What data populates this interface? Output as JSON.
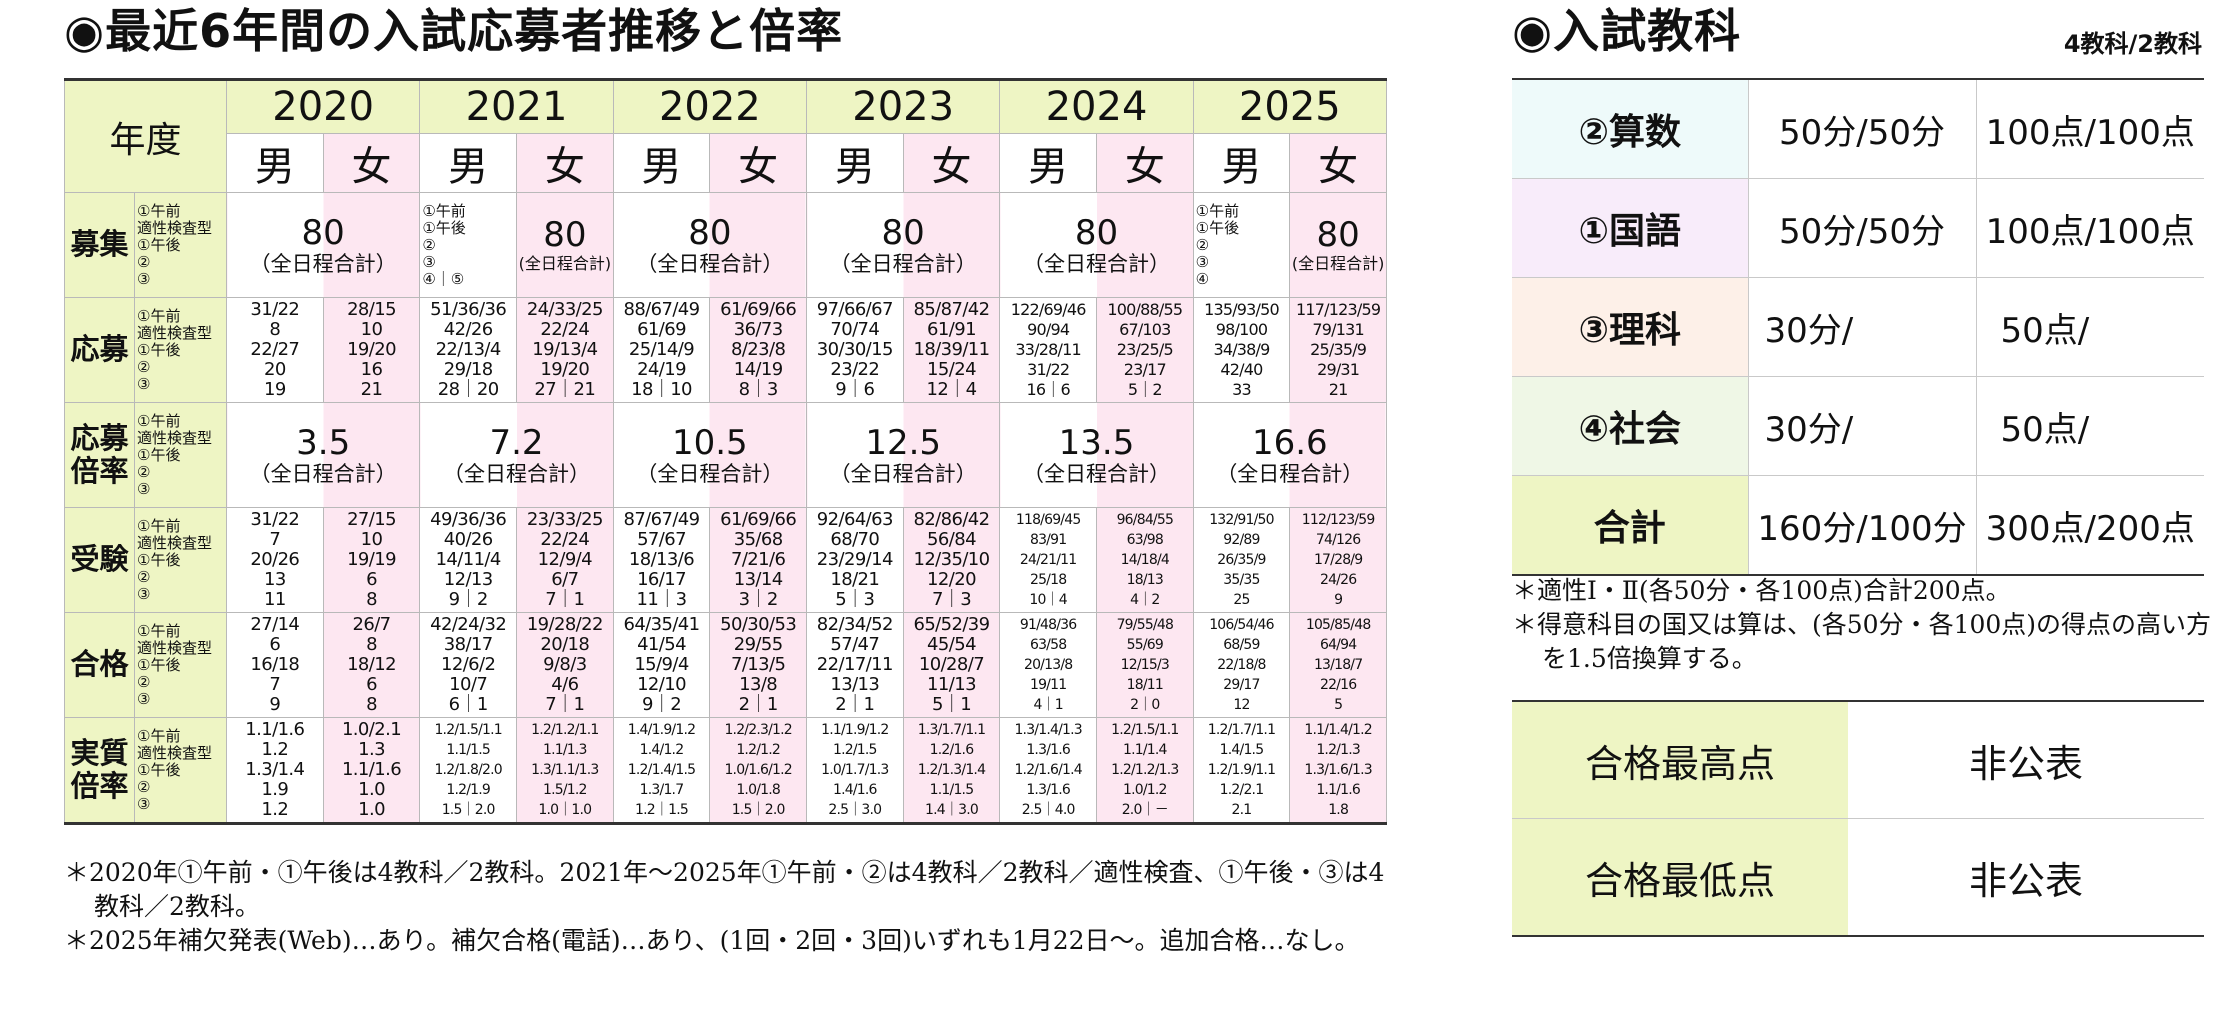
{
  "left_title": "◉最近6年間の入試応募者推移と倍率",
  "right_title": "◉入試教科",
  "subjects_note": "4教科/2教科",
  "table": {
    "nendo_label": "年度",
    "years": [
      "2020",
      "2021",
      "2022",
      "2023",
      "2024",
      "2025"
    ],
    "male": "男",
    "female": "女",
    "row_labels": {
      "boshu": "募集",
      "oubo": "応募",
      "bairitsu": [
        "応募",
        "倍率"
      ],
      "juken": "受験",
      "goukaku": "合格",
      "jisshitsu": [
        "実質",
        "倍率"
      ]
    },
    "session_labels": [
      "①午前",
      "適性検査型",
      "①午後",
      "②",
      "③"
    ],
    "boshu": {
      "value": "80",
      "note": "（全日程合計）",
      "note_small": "(全日程合計)",
      "y2021_sessions": [
        "①午前",
        "①午後",
        "②",
        "③",
        "④｜⑤"
      ],
      "y2025_sessions": [
        "①午前",
        "①午後",
        "②",
        "③",
        "④"
      ]
    },
    "oubo": [
      [
        [
          "31/22",
          "8",
          "22/27",
          "20",
          "19"
        ],
        [
          "28/15",
          "10",
          "19/20",
          "16",
          "21"
        ]
      ],
      [
        [
          "51/36/36",
          "42/26",
          "22/13/4",
          "29/18",
          "28｜20"
        ],
        [
          "24/33/25",
          "22/24",
          "19/13/4",
          "19/20",
          "27｜21"
        ]
      ],
      [
        [
          "88/67/49",
          "61/69",
          "25/14/9",
          "24/19",
          "18｜10"
        ],
        [
          "61/69/66",
          "36/73",
          "8/23/8",
          "14/19",
          "8｜3"
        ]
      ],
      [
        [
          "97/66/67",
          "70/74",
          "30/30/15",
          "23/22",
          "9｜6"
        ],
        [
          "85/87/42",
          "61/91",
          "18/39/11",
          "15/24",
          "12｜4"
        ]
      ],
      [
        [
          "122/69/46",
          "90/94",
          "33/28/11",
          "31/22",
          "16｜6"
        ],
        [
          "100/88/55",
          "67/103",
          "23/25/5",
          "23/17",
          "5｜2"
        ]
      ],
      [
        [
          "135/93/50",
          "98/100",
          "34/38/9",
          "42/40",
          "33"
        ],
        [
          "117/123/59",
          "79/131",
          "25/35/9",
          "29/31",
          "21"
        ]
      ]
    ],
    "bairitsu": [
      "3.5",
      "7.2",
      "10.5",
      "12.5",
      "13.5",
      "16.6"
    ],
    "bairitsu_note": "（全日程合計）",
    "juken": [
      [
        [
          "31/22",
          "7",
          "20/26",
          "13",
          "11"
        ],
        [
          "27/15",
          "10",
          "19/19",
          "6",
          "8"
        ]
      ],
      [
        [
          "49/36/36",
          "40/26",
          "14/11/4",
          "12/13",
          "9｜2"
        ],
        [
          "23/33/25",
          "22/24",
          "12/9/4",
          "6/7",
          "7｜1"
        ]
      ],
      [
        [
          "87/67/49",
          "57/67",
          "18/13/6",
          "16/17",
          "11｜3"
        ],
        [
          "61/69/66",
          "35/68",
          "7/21/6",
          "13/14",
          "3｜2"
        ]
      ],
      [
        [
          "92/64/63",
          "68/70",
          "23/29/14",
          "18/21",
          "5｜3"
        ],
        [
          "82/86/42",
          "56/84",
          "12/35/10",
          "12/20",
          "7｜3"
        ]
      ],
      [
        [
          "118/69/45",
          "83/91",
          "24/21/11",
          "25/18",
          "10｜4"
        ],
        [
          "96/84/55",
          "63/98",
          "14/18/4",
          "18/13",
          "4｜2"
        ]
      ],
      [
        [
          "132/91/50",
          "92/89",
          "26/35/9",
          "35/35",
          "25"
        ],
        [
          "112/123/59",
          "74/126",
          "17/28/9",
          "24/26",
          "9"
        ]
      ]
    ],
    "goukaku": [
      [
        [
          "27/14",
          "6",
          "16/18",
          "7",
          "9"
        ],
        [
          "26/7",
          "8",
          "18/12",
          "6",
          "8"
        ]
      ],
      [
        [
          "42/24/32",
          "38/17",
          "12/6/2",
          "10/7",
          "6｜1"
        ],
        [
          "19/28/22",
          "20/18",
          "9/8/3",
          "4/6",
          "7｜1"
        ]
      ],
      [
        [
          "64/35/41",
          "41/54",
          "15/9/4",
          "12/10",
          "9｜2"
        ],
        [
          "50/30/53",
          "29/55",
          "7/13/5",
          "13/8",
          "2｜1"
        ]
      ],
      [
        [
          "82/34/52",
          "57/47",
          "22/17/11",
          "13/13",
          "2｜1"
        ],
        [
          "65/52/39",
          "45/54",
          "10/28/7",
          "11/13",
          "5｜1"
        ]
      ],
      [
        [
          "91/48/36",
          "63/58",
          "20/13/8",
          "19/11",
          "4｜1"
        ],
        [
          "79/55/48",
          "55/69",
          "12/15/3",
          "18/11",
          "2｜0"
        ]
      ],
      [
        [
          "106/54/46",
          "68/59",
          "22/18/8",
          "29/17",
          "12"
        ],
        [
          "105/85/48",
          "64/94",
          "13/18/7",
          "22/16",
          "5"
        ]
      ]
    ],
    "jisshitsu": [
      [
        [
          "1.1/1.6",
          "1.2",
          "1.3/1.4",
          "1.9",
          "1.2"
        ],
        [
          "1.0/2.1",
          "1.3",
          "1.1/1.6",
          "1.0",
          "1.0"
        ]
      ],
      [
        [
          "1.2/1.5/1.1",
          "1.1/1.5",
          "1.2/1.8/2.0",
          "1.2/1.9",
          "1.5｜2.0"
        ],
        [
          "1.2/1.2/1.1",
          "1.1/1.3",
          "1.3/1.1/1.3",
          "1.5/1.2",
          "1.0｜1.0"
        ]
      ],
      [
        [
          "1.4/1.9/1.2",
          "1.4/1.2",
          "1.2/1.4/1.5",
          "1.3/1.7",
          "1.2｜1.5"
        ],
        [
          "1.2/2.3/1.2",
          "1.2/1.2",
          "1.0/1.6/1.2",
          "1.0/1.8",
          "1.5｜2.0"
        ]
      ],
      [
        [
          "1.1/1.9/1.2",
          "1.2/1.5",
          "1.0/1.7/1.3",
          "1.4/1.6",
          "2.5｜3.0"
        ],
        [
          "1.3/1.7/1.1",
          "1.2/1.6",
          "1.2/1.3/1.4",
          "1.1/1.5",
          "1.4｜3.0"
        ]
      ],
      [
        [
          "1.3/1.4/1.3",
          "1.3/1.6",
          "1.2/1.6/1.4",
          "1.3/1.6",
          "2.5｜4.0"
        ],
        [
          "1.2/1.5/1.1",
          "1.1/1.4",
          "1.2/1.2/1.3",
          "1.0/1.2",
          "2.0｜－"
        ]
      ],
      [
        [
          "1.2/1.7/1.1",
          "1.4/1.5",
          "1.2/1.9/1.1",
          "1.2/2.1",
          "2.1"
        ],
        [
          "1.1/1.4/1.2",
          "1.2/1.3",
          "1.3/1.6/1.3",
          "1.1/1.6",
          "1.8"
        ]
      ]
    ]
  },
  "left_notes": [
    "＊2020年①午前・①午後は4教科／2教科。2021年～2025年①午前・②は4教科／2教科／適性検査、①午後・③は4教科／2教科。",
    "＊2025年補欠発表(Web)…あり。補欠合格(電話)…あり、(1回・2回・3回)いずれも1月22日～。追加合格…なし。"
  ],
  "subjects": [
    {
      "name": "②算数",
      "time": "50分/50分",
      "points": "100点/100点",
      "bg": "#eefafa"
    },
    {
      "name": "①国語",
      "time": "50分/50分",
      "points": "100点/100点",
      "bg": "#f8ecfa"
    },
    {
      "name": "③理科",
      "time": "30分/",
      "points": "50点/",
      "bg": "#fdf0e8"
    },
    {
      "name": "④社会",
      "time": "30分/",
      "points": "50点/",
      "bg": "#eff7e6"
    },
    {
      "name": "合計",
      "time": "160分/100分",
      "points": "300点/200点",
      "bg": "#eef5c4"
    }
  ],
  "right_notes": [
    "＊適性Ⅰ・Ⅱ(各50分・各100点)合計200点。",
    "＊得意科目の国又は算は、(各50分・各100点)の得点の高い方を1.5倍換算する。"
  ],
  "scores": [
    {
      "label": "合格最高点",
      "value": "非公表"
    },
    {
      "label": "合格最低点",
      "value": "非公表"
    }
  ]
}
